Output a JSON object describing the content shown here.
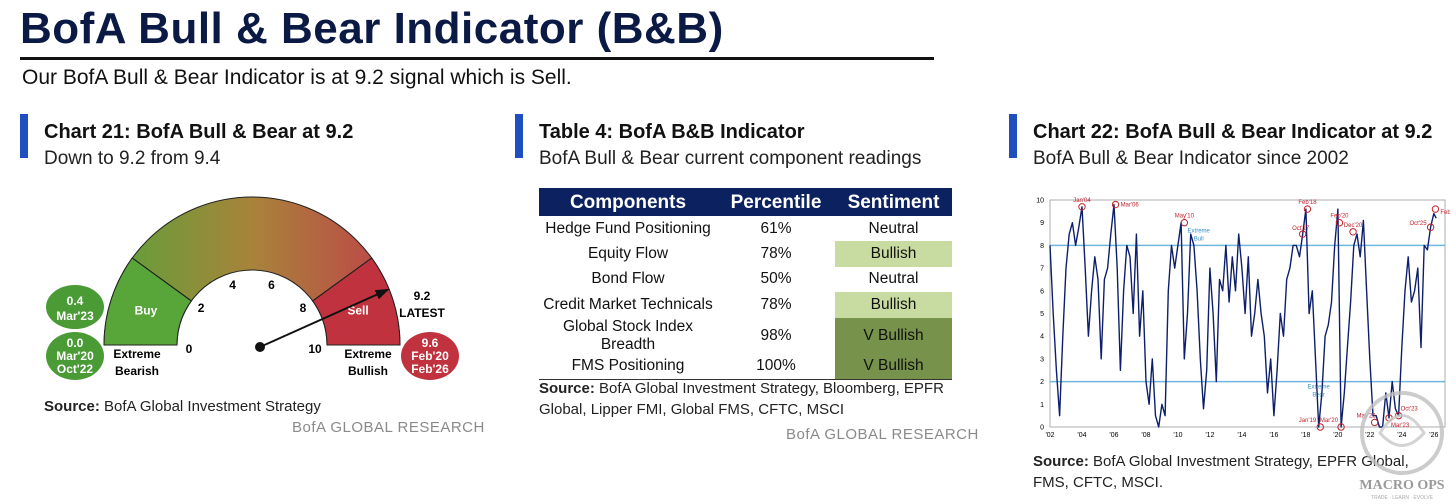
{
  "header": {
    "title": "BofA Bull & Bear Indicator (B&B)",
    "subtitle": "Our BofA Bull & Bear Indicator is at 9.2 signal which is Sell."
  },
  "gauge_panel": {
    "title": "Chart 21: BofA Bull & Bear at 9.2",
    "subtitle": "Down to 9.2 from 9.4",
    "ticks": [
      "0",
      "2",
      "4",
      "6",
      "8",
      "10"
    ],
    "zone_buy": "Buy",
    "zone_sell": "Sell",
    "label_extreme_bearish": [
      "Extreme",
      "Bearish"
    ],
    "label_extreme_bullish": [
      "Extreme",
      "Bullish"
    ],
    "latest_value": "9.2",
    "latest_label": "LATEST",
    "value": 9.2,
    "bubbles": {
      "b1": {
        "value": "0.4",
        "date": "Mar'23"
      },
      "b2": {
        "value": "0.0",
        "date": "Mar'20",
        "date2": "Oct'22"
      },
      "b3": {
        "value": "9.6",
        "date": "Feb'20",
        "date2": "Feb'26"
      }
    },
    "source_label": "Source:",
    "source_text": "BofA Global Investment Strategy",
    "brand": "BofA GLOBAL RESEARCH"
  },
  "table_panel": {
    "title": "Table 4: BofA B&B Indicator",
    "subtitle": "BofA Bull & Bear current component readings",
    "headers": [
      "Components",
      "Percentile",
      "Sentiment"
    ],
    "rows": [
      {
        "component": "Hedge Fund Positioning",
        "percentile": "61%",
        "sentiment": "Neutral"
      },
      {
        "component": "Equity Flow",
        "percentile": "78%",
        "sentiment": "Bullish"
      },
      {
        "component": "Bond Flow",
        "percentile": "50%",
        "sentiment": "Neutral"
      },
      {
        "component": "Credit Market Technicals",
        "percentile": "78%",
        "sentiment": "Bullish"
      },
      {
        "component": "Global Stock Index Breadth",
        "percentile": "98%",
        "sentiment": "V Bullish"
      },
      {
        "component": "FMS Positioning",
        "percentile": "100%",
        "sentiment": "V Bullish"
      }
    ],
    "source_label": "Source:",
    "source_text": "BofA Global Investment Strategy, Bloomberg, EPFR Global, Lipper FMI, Global FMS, CFTC, MSCI",
    "brand": "BofA GLOBAL RESEARCH"
  },
  "line_panel": {
    "title": "Chart 22: BofA Bull & Bear Indicator at 9.2",
    "subtitle": "BofA Bull & Bear Indicator since 2002",
    "source_label": "Source:",
    "source_text": "BofA Global Investment Strategy, EPFR Global, FMS, CFTC, MSCI.",
    "watermark": "MACRO OPS",
    "watermark_tagline": "TRADE · LEARN · EVOLVE",
    "extreme_bull_label": [
      "Extreme",
      "Bull"
    ],
    "extreme_bear_label": [
      "Extreme",
      "Bear"
    ]
  },
  "chart_data": [
    {
      "type": "gauge",
      "title": "Chart 21: BofA Bull & Bear at 9.2",
      "range": [
        0,
        10
      ],
      "value": 9.2,
      "zones": [
        {
          "name": "Buy",
          "from": 0,
          "to": 2
        },
        {
          "name": "Sell",
          "from": 8,
          "to": 10
        }
      ],
      "annotations": [
        {
          "value": 0.4,
          "date": "Mar'23"
        },
        {
          "value": 0.0,
          "date": "Mar'20, Oct'22"
        },
        {
          "value": 9.6,
          "date": "Feb'20, Feb'26"
        }
      ]
    },
    {
      "type": "line",
      "title": "Chart 22: BofA Bull & Bear Indicator at 9.2",
      "xlabel": "",
      "ylabel": "",
      "xlim": [
        2002,
        2026.7
      ],
      "ylim": [
        0,
        10
      ],
      "x_ticks": [
        "'02",
        "'04",
        "'06",
        "'08",
        "'10",
        "'12",
        "'14",
        "'16",
        "'18",
        "'20",
        "'22",
        "'24",
        "'26"
      ],
      "y_ticks": [
        "0",
        "1",
        "2",
        "3",
        "4",
        "5",
        "6",
        "7",
        "8",
        "9",
        "10"
      ],
      "thresholds": [
        {
          "name": "Extreme Bull",
          "value": 8
        },
        {
          "name": "Extreme Bear",
          "value": 2
        }
      ],
      "series": [
        {
          "name": "BofA Bull & Bear Indicator",
          "x": [
            2002.0,
            2002.2,
            2002.4,
            2002.6,
            2002.8,
            2003.0,
            2003.2,
            2003.4,
            2003.6,
            2003.8,
            2004.0,
            2004.2,
            2004.4,
            2004.6,
            2004.8,
            2005.0,
            2005.2,
            2005.4,
            2005.6,
            2005.8,
            2006.0,
            2006.2,
            2006.4,
            2006.6,
            2006.8,
            2007.0,
            2007.2,
            2007.4,
            2007.6,
            2007.8,
            2008.0,
            2008.2,
            2008.4,
            2008.6,
            2008.8,
            2009.0,
            2009.2,
            2009.4,
            2009.6,
            2009.8,
            2010.0,
            2010.2,
            2010.4,
            2010.6,
            2010.8,
            2011.0,
            2011.2,
            2011.4,
            2011.6,
            2011.8,
            2012.0,
            2012.2,
            2012.4,
            2012.6,
            2012.8,
            2013.0,
            2013.2,
            2013.4,
            2013.6,
            2013.8,
            2014.0,
            2014.2,
            2014.4,
            2014.6,
            2014.8,
            2015.0,
            2015.2,
            2015.4,
            2015.6,
            2015.8,
            2016.0,
            2016.2,
            2016.4,
            2016.6,
            2016.8,
            2017.0,
            2017.2,
            2017.4,
            2017.6,
            2017.8,
            2018.0,
            2018.2,
            2018.4,
            2018.6,
            2018.8,
            2019.0,
            2019.2,
            2019.4,
            2019.6,
            2019.8,
            2020.0,
            2020.2,
            2020.4,
            2020.6,
            2020.8,
            2021.0,
            2021.2,
            2021.4,
            2021.6,
            2021.8,
            2022.0,
            2022.2,
            2022.4,
            2022.6,
            2022.8,
            2023.0,
            2023.2,
            2023.4,
            2023.6,
            2023.8,
            2024.0,
            2024.2,
            2024.4,
            2024.6,
            2024.8,
            2025.0,
            2025.2,
            2025.4,
            2025.6,
            2025.8,
            2026.0,
            2026.15
          ],
          "values": [
            8.0,
            5.0,
            2.5,
            0.5,
            4.0,
            7.0,
            8.5,
            9.0,
            8.0,
            8.8,
            9.7,
            7.0,
            4.0,
            6.0,
            7.5,
            6.5,
            3.0,
            6.5,
            7.0,
            8.5,
            9.8,
            7.0,
            2.5,
            6.0,
            8.0,
            7.5,
            5.0,
            8.5,
            4.0,
            6.0,
            2.0,
            1.0,
            3.0,
            0.5,
            0.0,
            1.0,
            0.5,
            6.0,
            8.0,
            7.0,
            8.0,
            9.0,
            3.0,
            5.0,
            8.5,
            8.0,
            6.0,
            3.0,
            0.8,
            2.5,
            7.0,
            5.0,
            2.0,
            6.5,
            6.0,
            8.0,
            5.5,
            7.5,
            6.0,
            8.5,
            7.0,
            5.0,
            7.5,
            4.0,
            5.0,
            6.5,
            5.0,
            4.0,
            1.5,
            3.0,
            0.5,
            2.5,
            5.0,
            4.0,
            6.5,
            7.0,
            8.0,
            8.0,
            7.5,
            8.5,
            9.6,
            5.0,
            6.0,
            3.0,
            0.0,
            1.5,
            4.0,
            4.5,
            5.5,
            8.0,
            9.6,
            0.0,
            1.5,
            3.5,
            5.5,
            8.0,
            8.5,
            7.5,
            9.1,
            6.0,
            3.0,
            0.5,
            0.5,
            0.0,
            0.0,
            1.5,
            0.4,
            2.0,
            0.8,
            0.5,
            3.5,
            6.0,
            7.5,
            5.5,
            6.0,
            7.0,
            3.5,
            8.0,
            7.8,
            8.8,
            9.4,
            9.2
          ]
        }
      ],
      "annotations": [
        {
          "label": "Jan'04",
          "x": 2004.0,
          "y": 9.7
        },
        {
          "label": "Mar'06",
          "x": 2006.1,
          "y": 9.8
        },
        {
          "label": "May'10",
          "x": 2010.4,
          "y": 9.0
        },
        {
          "label": "Oct'17",
          "x": 2017.8,
          "y": 8.5
        },
        {
          "label": "Feb'18",
          "x": 2018.1,
          "y": 9.6
        },
        {
          "label": "Feb'20",
          "x": 2020.1,
          "y": 9.0
        },
        {
          "label": "Dec'20",
          "x": 2020.95,
          "y": 8.6
        },
        {
          "label": "Oct'25",
          "x": 2025.8,
          "y": 8.8
        },
        {
          "label": "Feb'26",
          "x": 2026.1,
          "y": 9.6
        },
        {
          "label": "Jan'19",
          "x": 2018.9,
          "y": 0.0
        },
        {
          "label": "Mar'20",
          "x": 2020.2,
          "y": 0.0
        },
        {
          "label": "May'22",
          "x": 2022.3,
          "y": 0.2
        },
        {
          "label": "Oct'23",
          "x": 2023.8,
          "y": 0.5
        },
        {
          "label": "Mar'23",
          "x": 2023.2,
          "y": 0.4
        }
      ]
    }
  ]
}
